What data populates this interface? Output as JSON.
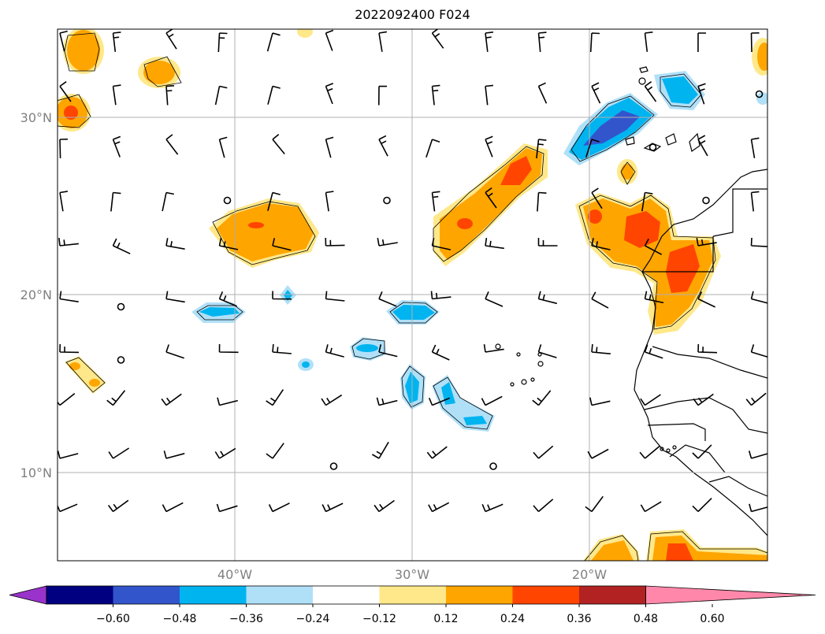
{
  "title": "2022092400 F024",
  "map": {
    "lat_labels": [
      "30°N",
      "20°N",
      "10°N"
    ],
    "lon_labels": [
      "40°W",
      "30°W",
      "20°W"
    ],
    "extent": {
      "lon_min": -50,
      "lon_max": -10,
      "lat_min": 5,
      "lat_max": 35
    }
  },
  "colorbar": {
    "ticks": [
      "−0.60",
      "−0.48",
      "−0.36",
      "−0.24",
      "−0.12",
      "0.12",
      "0.24",
      "0.36",
      "0.48",
      "0.60"
    ],
    "colors": [
      "#9933cc",
      "#000080",
      "#3355cc",
      "#00b4f0",
      "#b0e0f8",
      "#ffffff",
      "#ffe88a",
      "#ffa500",
      "#ff4500",
      "#b22222",
      "#ff88aa"
    ]
  },
  "palette": {
    "pos1": "#ffe88a",
    "pos2": "#ffa500",
    "pos3": "#ff4500",
    "neg1": "#b0e0f8",
    "neg2": "#00b4f0",
    "neg3": "#3355cc",
    "grid": "#b0b0b0",
    "frame": "#000000"
  }
}
